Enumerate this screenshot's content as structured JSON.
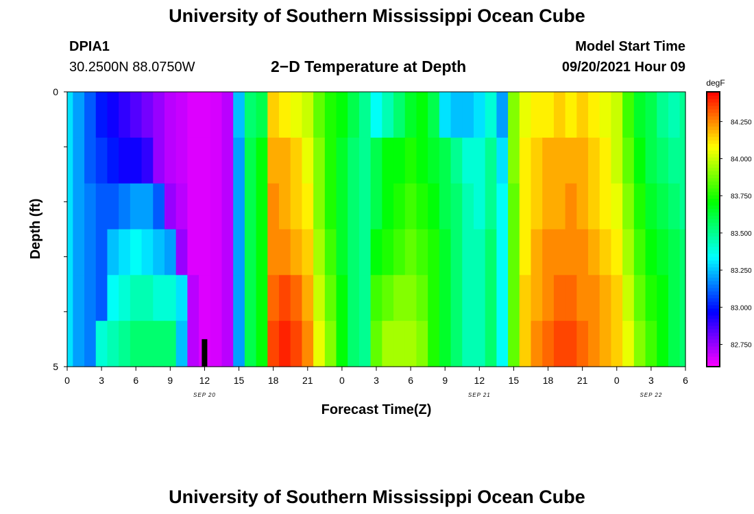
{
  "page": {
    "title": "University of Southern Mississippi Ocean Cube",
    "footer_title": "University of Southern Mississippi Ocean Cube",
    "station": "DPIA1",
    "coords": "30.2500N  88.0750W",
    "plot_title": "2−D Temperature at Depth",
    "model_label": "Model Start Time",
    "model_time": "09/20/2021 Hour 09"
  },
  "chart_data": {
    "type": "heatmap",
    "title": "2−D Temperature at Depth",
    "xlabel": "Forecast Time(Z)",
    "ylabel": "Depth (ft)",
    "x_hours_from_start": [
      0,
      1,
      2,
      3,
      4,
      5,
      6,
      7,
      8,
      9,
      10,
      11,
      12,
      13,
      14,
      15,
      16,
      17,
      18,
      19,
      20,
      21,
      22,
      23,
      24,
      25,
      26,
      27,
      28,
      29,
      30,
      31,
      32,
      33,
      34,
      35,
      36,
      37,
      38,
      39,
      40,
      41,
      42,
      43,
      44,
      45,
      46,
      47,
      48,
      49,
      50,
      51,
      52,
      53,
      54
    ],
    "x_range": [
      0,
      54
    ],
    "x_tick_labels": [
      "0",
      "3",
      "6",
      "9",
      "12",
      "15",
      "18",
      "21",
      "0",
      "3",
      "6",
      "9",
      "12",
      "15",
      "18",
      "21",
      "0",
      "3",
      "6"
    ],
    "date_labels": [
      {
        "label": "SEP 20",
        "hour": 12
      },
      {
        "label": "SEP 21",
        "hour": 36
      },
      {
        "label": "SEP 22",
        "hour": 51
      }
    ],
    "y_range": [
      0,
      5
    ],
    "y_tick_labels": [
      "0",
      "5"
    ],
    "depth_levels": [
      0,
      1,
      2,
      3,
      4,
      5
    ],
    "colorbar": {
      "unit": "degF",
      "min": 82.6,
      "max": 84.45,
      "ticks": [
        "84.250",
        "84.000",
        "83.750",
        "83.500",
        "83.250",
        "83.000",
        "82.750"
      ],
      "tick_values": [
        84.25,
        84.0,
        83.75,
        83.5,
        83.25,
        83.0,
        82.75
      ]
    },
    "rows": [
      {
        "depth": 0,
        "values": [
          83.3,
          83.2,
          83.1,
          83.0,
          82.95,
          82.9,
          82.85,
          82.8,
          82.75,
          82.7,
          82.68,
          82.65,
          82.65,
          82.66,
          82.7,
          83.25,
          83.55,
          83.6,
          84.15,
          84.1,
          84.05,
          84.0,
          83.85,
          83.75,
          83.7,
          83.6,
          83.5,
          83.35,
          83.45,
          83.55,
          83.65,
          83.7,
          83.6,
          83.3,
          83.25,
          83.25,
          83.3,
          83.4,
          83.2,
          83.9,
          84.05,
          84.1,
          84.1,
          84.15,
          84.1,
          84.15,
          84.1,
          84.05,
          84.0,
          83.8,
          83.65,
          83.6,
          83.5,
          83.45,
          83.5
        ]
      },
      {
        "depth": 1,
        "values": [
          83.3,
          83.2,
          83.1,
          83.05,
          83.0,
          82.95,
          82.95,
          82.9,
          82.75,
          82.7,
          82.68,
          82.65,
          82.65,
          82.66,
          82.7,
          83.2,
          83.6,
          83.7,
          84.2,
          84.2,
          84.15,
          84.05,
          83.9,
          83.75,
          83.65,
          83.55,
          83.5,
          83.6,
          83.7,
          83.7,
          83.75,
          83.7,
          83.65,
          83.6,
          83.5,
          83.4,
          83.4,
          83.5,
          83.3,
          83.9,
          84.1,
          84.15,
          84.2,
          84.2,
          84.2,
          84.2,
          84.15,
          84.1,
          84.0,
          83.85,
          83.7,
          83.6,
          83.55,
          83.5,
          83.5
        ]
      },
      {
        "depth": 2,
        "values": [
          83.3,
          83.2,
          83.15,
          83.1,
          83.1,
          83.15,
          83.2,
          83.2,
          83.1,
          82.75,
          82.7,
          82.65,
          82.65,
          82.66,
          82.7,
          83.2,
          83.6,
          83.7,
          84.25,
          84.2,
          84.15,
          84.1,
          83.9,
          83.75,
          83.65,
          83.55,
          83.5,
          83.6,
          83.7,
          83.75,
          83.8,
          83.75,
          83.7,
          83.6,
          83.55,
          83.45,
          83.4,
          83.5,
          83.35,
          83.85,
          84.1,
          84.15,
          84.2,
          84.2,
          84.25,
          84.2,
          84.15,
          84.1,
          84.05,
          83.9,
          83.75,
          83.65,
          83.6,
          83.55,
          83.5
        ]
      },
      {
        "depth": 3,
        "values": [
          83.3,
          83.2,
          83.15,
          83.1,
          83.25,
          83.3,
          83.35,
          83.3,
          83.25,
          83.2,
          82.75,
          82.65,
          82.65,
          82.66,
          82.7,
          83.2,
          83.6,
          83.7,
          84.25,
          84.25,
          84.2,
          84.15,
          83.95,
          83.8,
          83.65,
          83.55,
          83.5,
          83.7,
          83.75,
          83.8,
          83.85,
          83.8,
          83.75,
          83.65,
          83.55,
          83.45,
          83.45,
          83.55,
          83.35,
          83.85,
          84.1,
          84.2,
          84.25,
          84.25,
          84.25,
          84.25,
          84.2,
          84.15,
          84.1,
          83.95,
          83.8,
          83.7,
          83.65,
          83.6,
          83.55
        ]
      },
      {
        "depth": 4,
        "values": [
          83.3,
          83.2,
          83.15,
          83.1,
          83.35,
          83.4,
          83.45,
          83.45,
          83.4,
          83.4,
          83.3,
          82.7,
          82.65,
          82.66,
          82.7,
          83.2,
          83.6,
          83.7,
          84.3,
          84.35,
          84.3,
          84.2,
          84.0,
          83.85,
          83.7,
          83.55,
          83.5,
          83.8,
          83.85,
          83.9,
          83.9,
          83.85,
          83.75,
          83.65,
          83.55,
          83.45,
          83.45,
          83.55,
          83.35,
          83.85,
          84.15,
          84.2,
          84.25,
          84.3,
          84.3,
          84.25,
          84.25,
          84.2,
          84.15,
          84.0,
          83.85,
          83.75,
          83.7,
          83.6,
          83.55
        ]
      },
      {
        "depth": 5,
        "values": [
          83.3,
          83.2,
          83.15,
          83.4,
          83.45,
          83.5,
          83.55,
          83.55,
          83.55,
          83.55,
          83.25,
          82.7,
          82.65,
          82.66,
          82.7,
          83.2,
          83.6,
          83.7,
          84.35,
          84.4,
          84.35,
          84.25,
          84.05,
          83.9,
          83.7,
          83.55,
          83.5,
          83.85,
          83.95,
          83.95,
          83.95,
          83.9,
          83.75,
          83.65,
          83.55,
          83.45,
          83.45,
          83.55,
          83.35,
          83.85,
          84.15,
          84.25,
          84.3,
          84.35,
          84.35,
          84.3,
          84.25,
          84.2,
          84.15,
          84.05,
          83.9,
          83.8,
          83.7,
          83.6,
          83.55
        ]
      }
    ],
    "marker": {
      "label": "bar",
      "hour": 12,
      "depth_from": 4.5,
      "depth_to": 5
    }
  }
}
